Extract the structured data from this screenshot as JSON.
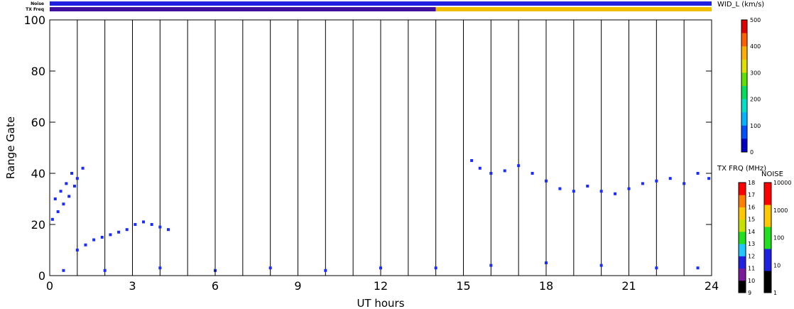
{
  "chart_data": {
    "type": "scatter",
    "xlabel": "UT hours",
    "ylabel": "Range Gate",
    "xlim": [
      0,
      24
    ],
    "ylim": [
      0,
      100
    ],
    "xticks": [
      0,
      3,
      6,
      9,
      12,
      15,
      18,
      21,
      24
    ],
    "yticks": [
      0,
      20,
      40,
      60,
      80,
      100
    ],
    "grid": "vertical lines every hour",
    "top_bars": [
      {
        "label": "Noise",
        "segments": [
          {
            "x0": 0,
            "x1": 24,
            "color": "#2020e0"
          }
        ]
      },
      {
        "label": "TX Freq",
        "segments": [
          {
            "x0": 0,
            "x1": 14,
            "color": "#4010a0"
          },
          {
            "x0": 14,
            "x1": 24,
            "color": "#f0c000"
          }
        ]
      }
    ],
    "series": [
      {
        "x": [
          0.1,
          0.3,
          0.5,
          0.7,
          0.9,
          1.0,
          1.2,
          0.2,
          0.4,
          0.6,
          0.8
        ],
        "y": [
          22,
          25,
          28,
          31,
          35,
          38,
          42,
          30,
          33,
          36,
          40
        ],
        "color": "#1a2cff"
      },
      {
        "x": [
          1.0,
          1.3,
          1.6,
          1.9,
          2.2,
          2.5,
          2.8,
          3.1,
          3.4,
          3.7,
          4.0,
          4.3
        ],
        "y": [
          10,
          12,
          14,
          15,
          16,
          17,
          18,
          20,
          21,
          20,
          19,
          18
        ],
        "color": "#1a2cff"
      },
      {
        "x": [
          15.3,
          15.6,
          16.0,
          16.5,
          17.0,
          17.5,
          18.0,
          18.5,
          19.0,
          19.5,
          20.0,
          20.5,
          21.0,
          21.5,
          22.0,
          22.5,
          23.0,
          23.5,
          23.9
        ],
        "y": [
          45,
          42,
          40,
          41,
          43,
          40,
          37,
          34,
          33,
          35,
          33,
          32,
          34,
          36,
          37,
          38,
          36,
          40,
          38
        ],
        "color": "#1a2cff"
      },
      {
        "x": [
          0.5,
          2,
          4,
          6,
          8,
          10,
          12,
          14,
          16,
          18,
          20,
          22,
          23.5
        ],
        "y": [
          2,
          2,
          3,
          2,
          3,
          2,
          3,
          3,
          4,
          5,
          4,
          3,
          3
        ],
        "color": "#1a2cff"
      }
    ],
    "colorbars": [
      {
        "title": "WID_L (km/s)",
        "ticks": [
          "0",
          "100",
          "200",
          "300",
          "400",
          "500"
        ]
      },
      {
        "title": "TX FRQ (MHz)",
        "ticks": [
          "9",
          "10",
          "11",
          "12",
          "13",
          "14",
          "15",
          "16",
          "17",
          "18"
        ]
      },
      {
        "title": "NOISE",
        "ticks": [
          "1",
          "10",
          "100",
          "1000",
          "10000"
        ]
      }
    ]
  }
}
